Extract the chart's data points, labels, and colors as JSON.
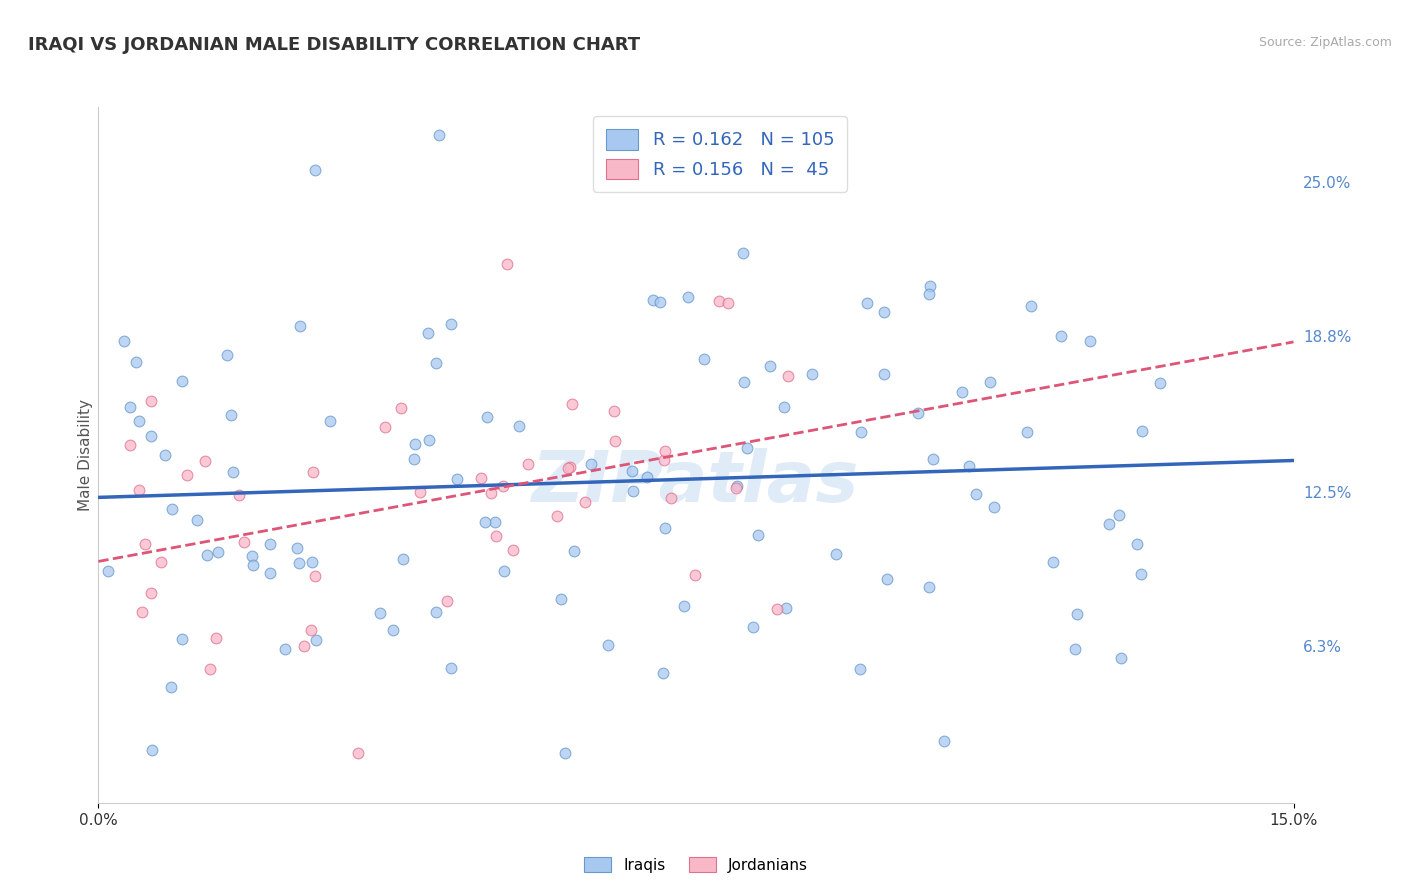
{
  "title": "IRAQI VS JORDANIAN MALE DISABILITY CORRELATION CHART",
  "source": "Source: ZipAtlas.com",
  "ylabel": "Male Disability",
  "xlim": [
    0.0,
    0.15
  ],
  "ylim": [
    0.0,
    0.28
  ],
  "xtick_vals": [
    0.0,
    0.15
  ],
  "xtick_labels": [
    "0.0%",
    "15.0%"
  ],
  "yticks_right": [
    0.063,
    0.125,
    0.188,
    0.25
  ],
  "ytick_labels_right": [
    "6.3%",
    "12.5%",
    "18.8%",
    "25.0%"
  ],
  "iraqis_color": "#a8c8f0",
  "jordanians_color": "#f9b8c8",
  "iraqis_edge_color": "#6699cc",
  "jordanians_edge_color": "#e07090",
  "iraqis_R": 0.162,
  "iraqis_N": 105,
  "jordanians_R": 0.156,
  "jordanians_N": 45,
  "trend_iraqis_color": "#3366bb",
  "trend_jordanians_color": "#dd5577",
  "background_color": "#ffffff",
  "grid_color": "#cccccc",
  "marker_size": 60,
  "marker_alpha": 0.75,
  "title_fontsize": 13,
  "label_fontsize": 11,
  "legend_fontsize": 13,
  "watermark_text": "ZIPatlas",
  "watermark_color": "#b8d4ee",
  "watermark_alpha": 0.45
}
